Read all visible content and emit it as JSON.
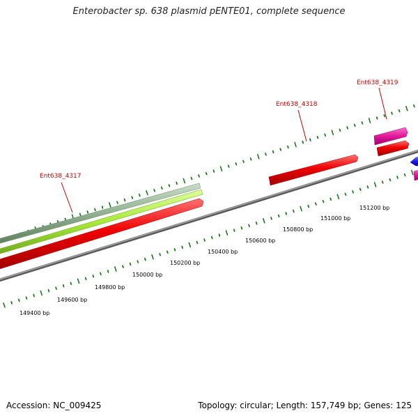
{
  "title": "Enterobacter sp. 638 plasmid pENTE01, complete sequence",
  "footer": {
    "accession": "Accession: NC_009425",
    "summary": "Topology: circular; Length: 157,749 bp; Genes: 125"
  },
  "colors": {
    "tick": "#1a7a1a",
    "backbone": "#808080",
    "gene_red": "#ee0000",
    "gene_pink": "#e0189a",
    "gene_lime": "#a8e83a",
    "gene_gray_green": "#8fb08f",
    "gene_blue": "#1a1aee",
    "label": "#cc0000"
  },
  "scale_labels": [
    "149400 bp",
    "149600 bp",
    "149800 bp",
    "150000 bp",
    "150200 bp",
    "150400 bp",
    "150600 bp",
    "150800 bp",
    "151000 bp",
    "151200 bp"
  ],
  "gene_labels": [
    "Ent638_4317",
    "Ent638_4318",
    "Ent638_4319"
  ]
}
